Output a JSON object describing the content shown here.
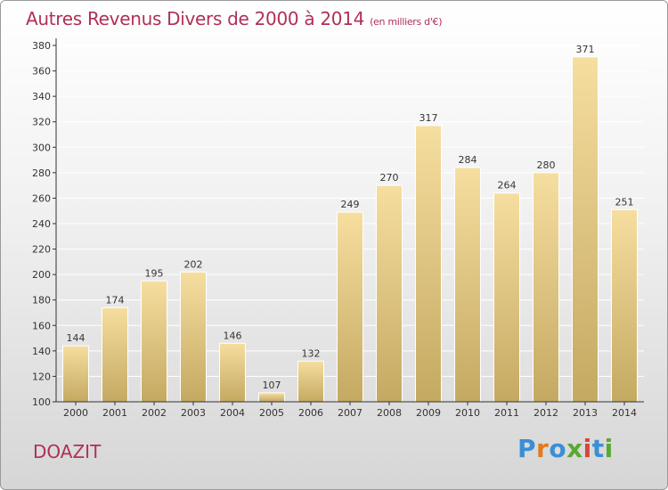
{
  "title": "Autres Revenus Divers de 2000 à 2014",
  "subtitle": "(en milliers d'€)",
  "place_name": "DOAZIT",
  "logo": {
    "text": "Proxiti",
    "letters": [
      "P",
      "r",
      "o",
      "x",
      "i",
      "t",
      "i"
    ],
    "colors": [
      "#3a8fd6",
      "#e07b1f",
      "#3a8fd6",
      "#5aa832",
      "#d9463a",
      "#3a8fd6",
      "#5aa832"
    ]
  },
  "colors": {
    "title": "#b03055",
    "bar_top": "#f6dea0",
    "bar_bottom": "#c4a961",
    "axis": "#333333",
    "grid": "#ffffff"
  },
  "chart_data": {
    "type": "bar",
    "categories": [
      "2000",
      "2001",
      "2002",
      "2003",
      "2004",
      "2005",
      "2006",
      "2007",
      "2008",
      "2009",
      "2010",
      "2011",
      "2012",
      "2013",
      "2014"
    ],
    "values": [
      144,
      174,
      195,
      202,
      146,
      107,
      132,
      249,
      270,
      317,
      284,
      264,
      280,
      371,
      251
    ],
    "title": "Autres Revenus Divers de 2000 à 2014",
    "subtitle": "(en milliers d'€)",
    "xlabel": "",
    "ylabel": "",
    "ylim": [
      100,
      380
    ],
    "yticks": [
      100,
      120,
      140,
      160,
      180,
      200,
      220,
      240,
      260,
      280,
      300,
      320,
      340,
      360,
      380
    ],
    "grid": true,
    "legend": "none"
  }
}
